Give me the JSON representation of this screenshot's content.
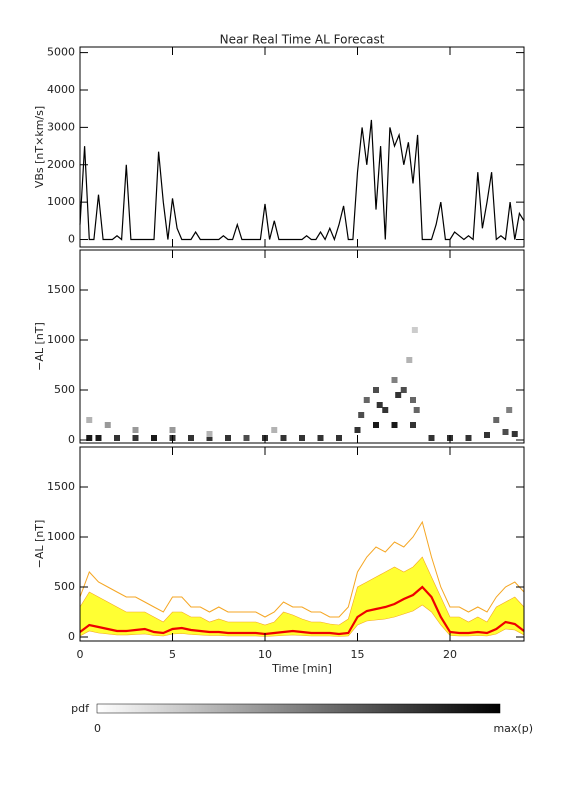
{
  "chart_data": [
    {
      "type": "line",
      "title": "Near Real Time AL Forecast",
      "ylabel": "VBs [nT×km/s]",
      "color": "#000000",
      "xlim": [
        0,
        24
      ],
      "xticks": [
        0,
        5,
        10,
        15,
        20
      ],
      "ylim": [
        -200,
        5150
      ],
      "yticks": [
        0,
        1000,
        2000,
        3000,
        4000,
        5000
      ],
      "x": [
        0,
        0.25,
        0.5,
        0.75,
        1,
        1.25,
        1.5,
        1.75,
        2,
        2.25,
        2.5,
        2.75,
        3,
        3.25,
        3.5,
        3.75,
        4,
        4.25,
        4.5,
        4.75,
        5,
        5.25,
        5.5,
        5.75,
        6,
        6.25,
        6.5,
        6.75,
        7,
        7.25,
        7.5,
        7.75,
        8,
        8.25,
        8.5,
        8.75,
        9,
        9.25,
        9.5,
        9.75,
        10,
        10.25,
        10.5,
        10.75,
        11,
        11.25,
        11.5,
        11.75,
        12,
        12.25,
        12.5,
        12.75,
        13,
        13.25,
        13.5,
        13.75,
        14,
        14.25,
        14.5,
        14.75,
        15,
        15.25,
        15.5,
        15.75,
        16,
        16.25,
        16.5,
        16.75,
        17,
        17.25,
        17.5,
        17.75,
        18,
        18.25,
        18.5,
        18.75,
        19,
        19.25,
        19.5,
        19.75,
        20,
        20.25,
        20.5,
        20.75,
        21,
        21.25,
        21.5,
        21.75,
        22,
        22.25,
        22.5,
        22.75,
        23,
        23.25,
        23.5,
        23.75,
        24
      ],
      "values": [
        400,
        2500,
        0,
        0,
        1200,
        0,
        0,
        0,
        100,
        0,
        2000,
        0,
        0,
        0,
        0,
        0,
        0,
        2350,
        1000,
        0,
        1100,
        300,
        0,
        0,
        0,
        200,
        0,
        0,
        0,
        0,
        0,
        100,
        0,
        0,
        400,
        0,
        0,
        0,
        0,
        0,
        950,
        0,
        500,
        0,
        0,
        0,
        0,
        0,
        0,
        100,
        0,
        0,
        200,
        0,
        300,
        0,
        400,
        900,
        0,
        0,
        1800,
        3000,
        2000,
        3200,
        800,
        2500,
        0,
        3000,
        2500,
        2800,
        2000,
        2600,
        1500,
        2800,
        0,
        0,
        0,
        400,
        1000,
        0,
        0,
        200,
        100,
        0,
        100,
        0,
        1800,
        300,
        1000,
        1800,
        0,
        100,
        0,
        1000,
        0,
        700,
        500
      ]
    },
    {
      "type": "density",
      "ylabel": "−AL [nT]",
      "xlim": [
        0,
        24
      ],
      "xticks": [
        0,
        5,
        10,
        15,
        20
      ],
      "ylim": [
        -30,
        1900
      ],
      "yticks": [
        0,
        500,
        1000,
        1500
      ],
      "x": [
        0.5,
        1,
        2,
        3,
        4,
        5,
        6,
        7,
        8,
        9,
        10,
        11,
        12,
        13,
        14,
        15,
        16,
        17,
        18,
        19,
        20,
        21,
        22,
        23,
        23.5,
        0.5,
        1.5,
        3,
        5,
        7,
        10.5,
        15.5,
        16,
        16.5,
        17,
        17.5,
        18,
        15.2,
        16.2,
        17.2,
        18.2,
        17.8,
        18.1,
        22.5,
        23.2
      ],
      "y": [
        20,
        20,
        20,
        20,
        20,
        20,
        20,
        20,
        20,
        20,
        20,
        20,
        20,
        20,
        20,
        100,
        150,
        150,
        150,
        20,
        20,
        20,
        50,
        80,
        60,
        200,
        150,
        100,
        100,
        60,
        100,
        400,
        500,
        300,
        600,
        500,
        400,
        250,
        350,
        450,
        300,
        800,
        1100,
        200,
        300
      ],
      "density": [
        0.9,
        0.9,
        0.8,
        0.8,
        0.9,
        0.8,
        0.8,
        0.8,
        0.8,
        0.7,
        0.8,
        0.8,
        0.8,
        0.8,
        0.8,
        0.8,
        0.9,
        0.9,
        0.8,
        0.8,
        0.8,
        0.8,
        0.8,
        0.7,
        0.8,
        0.3,
        0.4,
        0.4,
        0.4,
        0.3,
        0.3,
        0.6,
        0.7,
        0.8,
        0.5,
        0.7,
        0.6,
        0.7,
        0.8,
        0.8,
        0.6,
        0.3,
        0.2,
        0.6,
        0.5
      ]
    },
    {
      "type": "band",
      "ylabel": "−AL [nT]",
      "xlabel": "Time [min]",
      "xlim": [
        0,
        24
      ],
      "xticks": [
        0,
        5,
        10,
        15,
        20
      ],
      "ylim": [
        -40,
        1900
      ],
      "yticks": [
        0,
        500,
        1000,
        1500
      ],
      "x": [
        0,
        0.5,
        1,
        1.5,
        2,
        2.5,
        3,
        3.5,
        4,
        4.5,
        5,
        5.5,
        6,
        6.5,
        7,
        7.5,
        8,
        8.5,
        9,
        9.5,
        10,
        10.5,
        11,
        11.5,
        12,
        12.5,
        13,
        13.5,
        14,
        14.5,
        15,
        15.5,
        16,
        16.5,
        17,
        17.5,
        18,
        18.5,
        19,
        19.5,
        20,
        20.5,
        21,
        21.5,
        22,
        22.5,
        23,
        23.5,
        24
      ],
      "max": {
        "color": "#f5a623",
        "values": [
          400,
          650,
          550,
          500,
          450,
          400,
          400,
          350,
          300,
          250,
          400,
          400,
          300,
          300,
          250,
          300,
          250,
          250,
          250,
          250,
          200,
          250,
          350,
          300,
          300,
          250,
          250,
          200,
          200,
          300,
          650,
          800,
          900,
          850,
          950,
          900,
          1000,
          1150,
          800,
          500,
          300,
          300,
          250,
          300,
          250,
          400,
          500,
          550,
          450
        ]
      },
      "band": {
        "color": "#ffff33",
        "upper": [
          300,
          450,
          400,
          350,
          300,
          250,
          250,
          250,
          200,
          150,
          250,
          250,
          200,
          200,
          150,
          180,
          150,
          150,
          150,
          150,
          120,
          150,
          250,
          220,
          180,
          150,
          150,
          130,
          120,
          180,
          500,
          550,
          600,
          650,
          700,
          650,
          700,
          800,
          600,
          400,
          200,
          200,
          150,
          200,
          150,
          300,
          350,
          400,
          300
        ],
        "lower": [
          10,
          60,
          40,
          30,
          20,
          20,
          25,
          30,
          15,
          10,
          30,
          35,
          25,
          20,
          15,
          15,
          10,
          10,
          10,
          10,
          5,
          10,
          15,
          20,
          15,
          10,
          10,
          10,
          5,
          10,
          120,
          160,
          170,
          180,
          200,
          230,
          260,
          320,
          250,
          120,
          15,
          10,
          10,
          15,
          10,
          30,
          80,
          70,
          20
        ]
      },
      "median": {
        "color": "#ee0000",
        "values": [
          50,
          120,
          100,
          80,
          60,
          60,
          70,
          80,
          50,
          40,
          80,
          90,
          70,
          60,
          50,
          50,
          40,
          40,
          40,
          40,
          30,
          40,
          50,
          60,
          50,
          40,
          40,
          40,
          30,
          40,
          200,
          260,
          280,
          300,
          330,
          380,
          420,
          500,
          400,
          200,
          50,
          40,
          40,
          50,
          40,
          80,
          150,
          130,
          60
        ]
      }
    }
  ],
  "colorbar": {
    "label": "pdf",
    "min_label": "0",
    "max_label": "max(p)"
  }
}
